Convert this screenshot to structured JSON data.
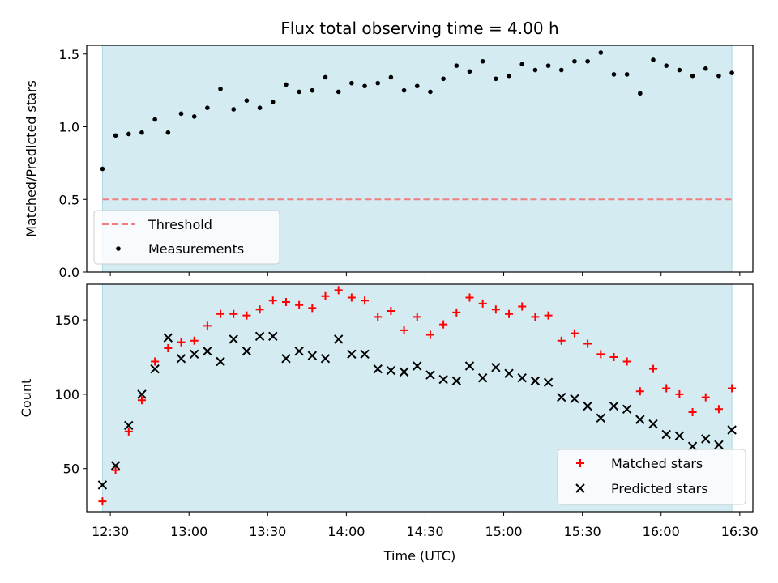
{
  "title": "Flux total observing time = 4.00 h",
  "colors": {
    "span": "#add8e6",
    "threshold": "#f08080",
    "measurement": "#000000",
    "matched": "#ff0000",
    "predicted": "#000000"
  },
  "chart_data": [
    {
      "type": "scatter",
      "ylabel": "Matched/Predicted stars",
      "xlim": [
        "12:21",
        "16:35"
      ],
      "ylim": [
        0,
        1.56
      ],
      "yticks": [
        0.0,
        0.5,
        1.0,
        1.5
      ],
      "ytick_labels": [
        "0.0",
        "0.5",
        "1.0",
        "1.5"
      ],
      "shaded_span": [
        "12:27",
        "16:27"
      ],
      "threshold": {
        "name": "Threshold",
        "value": 0.5
      },
      "legend": {
        "position": "lower-left",
        "entries": [
          "Threshold",
          "Measurements"
        ]
      },
      "series": [
        {
          "name": "Measurements",
          "x": [
            "12:27",
            "12:32",
            "12:37",
            "12:42",
            "12:47",
            "12:52",
            "12:57",
            "13:02",
            "13:07",
            "13:12",
            "13:17",
            "13:22",
            "13:27",
            "13:32",
            "13:37",
            "13:42",
            "13:47",
            "13:52",
            "13:57",
            "14:02",
            "14:07",
            "14:12",
            "14:17",
            "14:22",
            "14:27",
            "14:32",
            "14:37",
            "14:42",
            "14:47",
            "14:52",
            "14:57",
            "15:02",
            "15:07",
            "15:12",
            "15:17",
            "15:22",
            "15:27",
            "15:32",
            "15:37",
            "15:42",
            "15:47",
            "15:52",
            "15:57",
            "16:02",
            "16:07",
            "16:12",
            "16:17",
            "16:22",
            "16:27"
          ],
          "values": [
            0.71,
            0.94,
            0.95,
            0.96,
            1.05,
            0.96,
            1.09,
            1.07,
            1.13,
            1.26,
            1.12,
            1.18,
            1.13,
            1.17,
            1.29,
            1.24,
            1.25,
            1.34,
            1.24,
            1.3,
            1.28,
            1.3,
            1.34,
            1.25,
            1.28,
            1.24,
            1.33,
            1.42,
            1.38,
            1.45,
            1.33,
            1.35,
            1.43,
            1.39,
            1.42,
            1.39,
            1.45,
            1.45,
            1.51,
            1.36,
            1.36,
            1.23,
            1.46,
            1.42,
            1.39,
            1.35,
            1.4,
            1.35,
            1.37
          ]
        }
      ]
    },
    {
      "type": "scatter",
      "xlabel": "Time (UTC)",
      "ylabel": "Count",
      "xlim": [
        "12:21",
        "16:35"
      ],
      "ylim": [
        21,
        174
      ],
      "yticks": [
        50,
        100,
        150
      ],
      "ytick_labels": [
        "50",
        "100",
        "150"
      ],
      "xticks": [
        "12:30",
        "13:00",
        "13:30",
        "14:00",
        "14:30",
        "15:00",
        "15:30",
        "16:00",
        "16:30"
      ],
      "xtick_labels": [
        "12:30",
        "13:00",
        "13:30",
        "14:00",
        "14:30",
        "15:00",
        "15:30",
        "16:00",
        "16:30"
      ],
      "shaded_span": [
        "12:27",
        "16:27"
      ],
      "legend": {
        "position": "lower-right",
        "entries": [
          "Matched stars",
          "Predicted stars"
        ]
      },
      "series": [
        {
          "name": "Matched stars",
          "marker": "plus",
          "x": [
            "12:27",
            "12:32",
            "12:37",
            "12:42",
            "12:47",
            "12:52",
            "12:57",
            "13:02",
            "13:07",
            "13:12",
            "13:17",
            "13:22",
            "13:27",
            "13:32",
            "13:37",
            "13:42",
            "13:47",
            "13:52",
            "13:57",
            "14:02",
            "14:07",
            "14:12",
            "14:17",
            "14:22",
            "14:27",
            "14:32",
            "14:37",
            "14:42",
            "14:47",
            "14:52",
            "14:57",
            "15:02",
            "15:07",
            "15:12",
            "15:17",
            "15:22",
            "15:27",
            "15:32",
            "15:37",
            "15:42",
            "15:47",
            "15:52",
            "15:57",
            "16:02",
            "16:07",
            "16:12",
            "16:17",
            "16:22",
            "16:27"
          ],
          "values": [
            28,
            49,
            75,
            96,
            122,
            131,
            135,
            136,
            146,
            154,
            154,
            153,
            157,
            163,
            162,
            160,
            158,
            166,
            170,
            165,
            163,
            152,
            156,
            143,
            152,
            140,
            147,
            155,
            165,
            161,
            157,
            154,
            159,
            152,
            153,
            136,
            141,
            134,
            127,
            125,
            122,
            102,
            117,
            104,
            100,
            88,
            98,
            90,
            104
          ]
        },
        {
          "name": "Predicted stars",
          "marker": "x",
          "x": [
            "12:27",
            "12:32",
            "12:37",
            "12:42",
            "12:47",
            "12:52",
            "12:57",
            "13:02",
            "13:07",
            "13:12",
            "13:17",
            "13:22",
            "13:27",
            "13:32",
            "13:37",
            "13:42",
            "13:47",
            "13:52",
            "13:57",
            "14:02",
            "14:07",
            "14:12",
            "14:17",
            "14:22",
            "14:27",
            "14:32",
            "14:37",
            "14:42",
            "14:47",
            "14:52",
            "14:57",
            "15:02",
            "15:07",
            "15:12",
            "15:17",
            "15:22",
            "15:27",
            "15:32",
            "15:37",
            "15:42",
            "15:47",
            "15:52",
            "15:57",
            "16:02",
            "16:07",
            "16:12",
            "16:17",
            "16:22",
            "16:27"
          ],
          "values": [
            39,
            52,
            79,
            100,
            117,
            138,
            124,
            127,
            129,
            122,
            137,
            129,
            139,
            139,
            124,
            129,
            126,
            124,
            137,
            127,
            127,
            117,
            116,
            115,
            119,
            113,
            110,
            109,
            119,
            111,
            118,
            114,
            111,
            109,
            108,
            98,
            97,
            92,
            84,
            92,
            90,
            83,
            80,
            73,
            72,
            65,
            70,
            66,
            76
          ]
        }
      ]
    }
  ]
}
